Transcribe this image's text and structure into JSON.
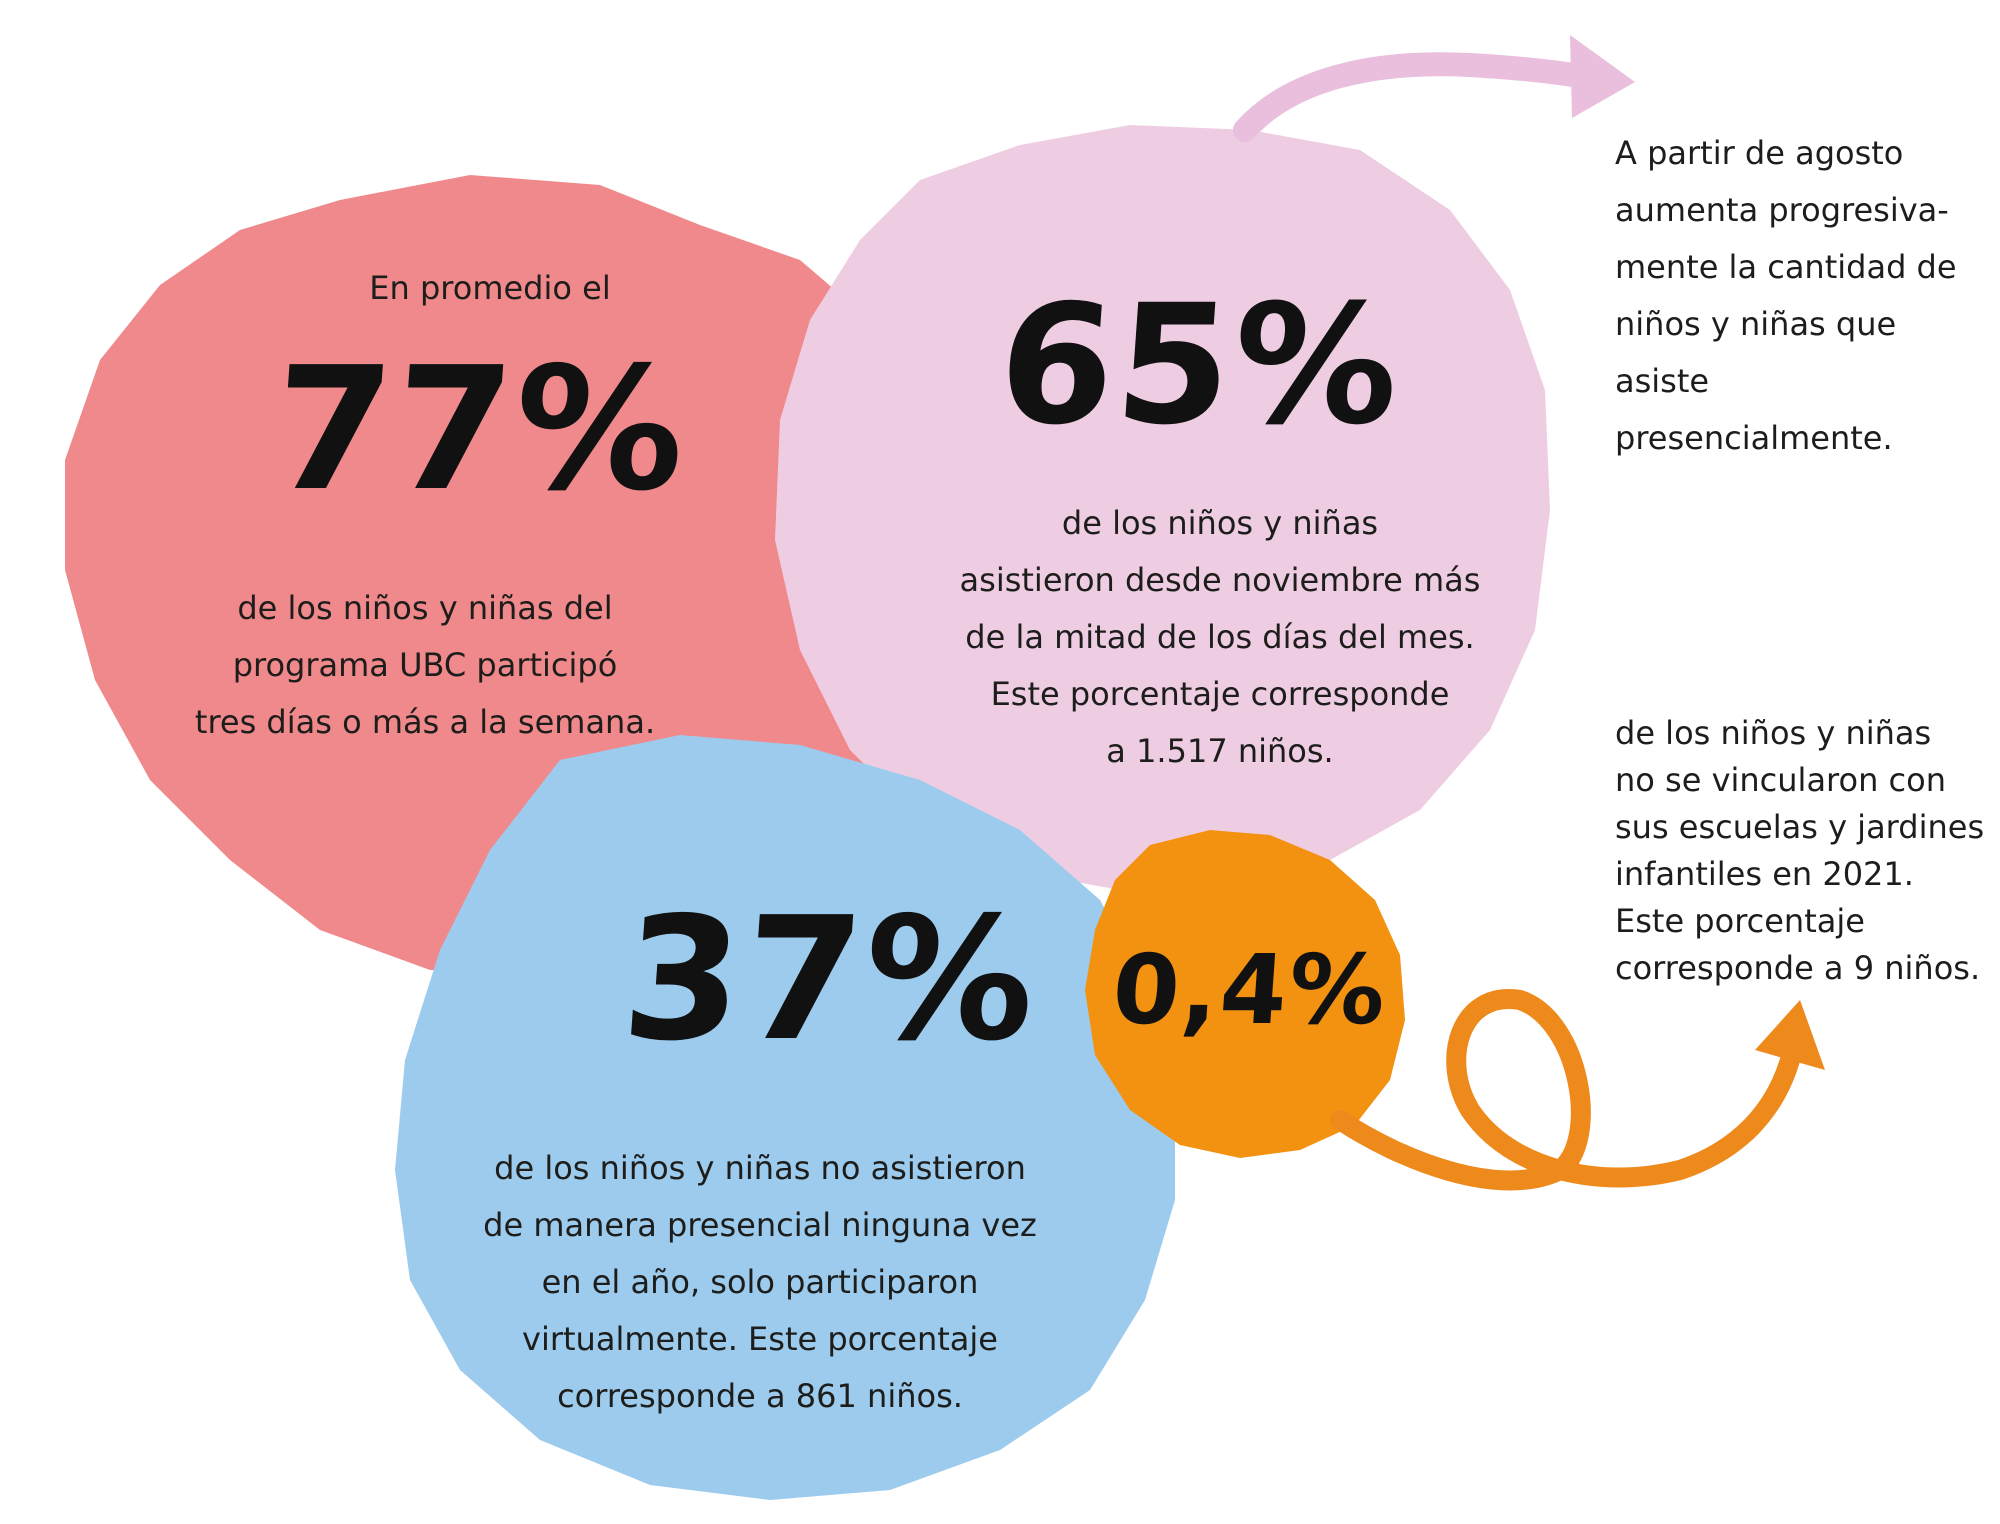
{
  "colors": {
    "red_blob": "#f0898b",
    "pink_blob": "#eecde3",
    "blue_blob": "#9ccbed",
    "orange_blob": "#f29210",
    "pink_arrow": "#e9bfdd",
    "orange_arrow": "#ee8a1c",
    "text": "#1d1d1b",
    "numbers": "#111111"
  },
  "stat_77": {
    "intro": "En promedio el",
    "value": "77%",
    "lines": [
      "de los niños y niñas del",
      "programa UBC participó",
      "tres días o más a la semana."
    ]
  },
  "stat_65": {
    "value": "65%",
    "lines": [
      "de los niños y niñas",
      "asistieron desde noviembre más",
      "de la mitad de los días del mes.",
      "Este porcentaje corresponde",
      "a 1.517 niños."
    ]
  },
  "stat_37": {
    "value": "37%",
    "lines": [
      "de los niños y niñas no asistieron",
      "de manera presencial ninguna vez",
      "en el año, solo participaron",
      "virtualmente. Este porcentaje",
      "corresponde a 861 niños."
    ]
  },
  "stat_04": {
    "value": "0,4%",
    "lines": [
      "de los niños y niñas",
      "no se vincularon con",
      "sus escuelas y jardines",
      "infantiles en 2021.",
      "Este porcentaje",
      "corresponde a 9 niños."
    ]
  },
  "note_agosto": {
    "lines": [
      "A partir de agosto",
      "aumenta progresiva-",
      "mente la cantidad de",
      "niños y niñas que asiste",
      "presencialmente."
    ]
  },
  "icons": {
    "pink_arrow": "curved-arrow-right-icon",
    "orange_arrow": "loop-arrow-up-right-icon"
  }
}
